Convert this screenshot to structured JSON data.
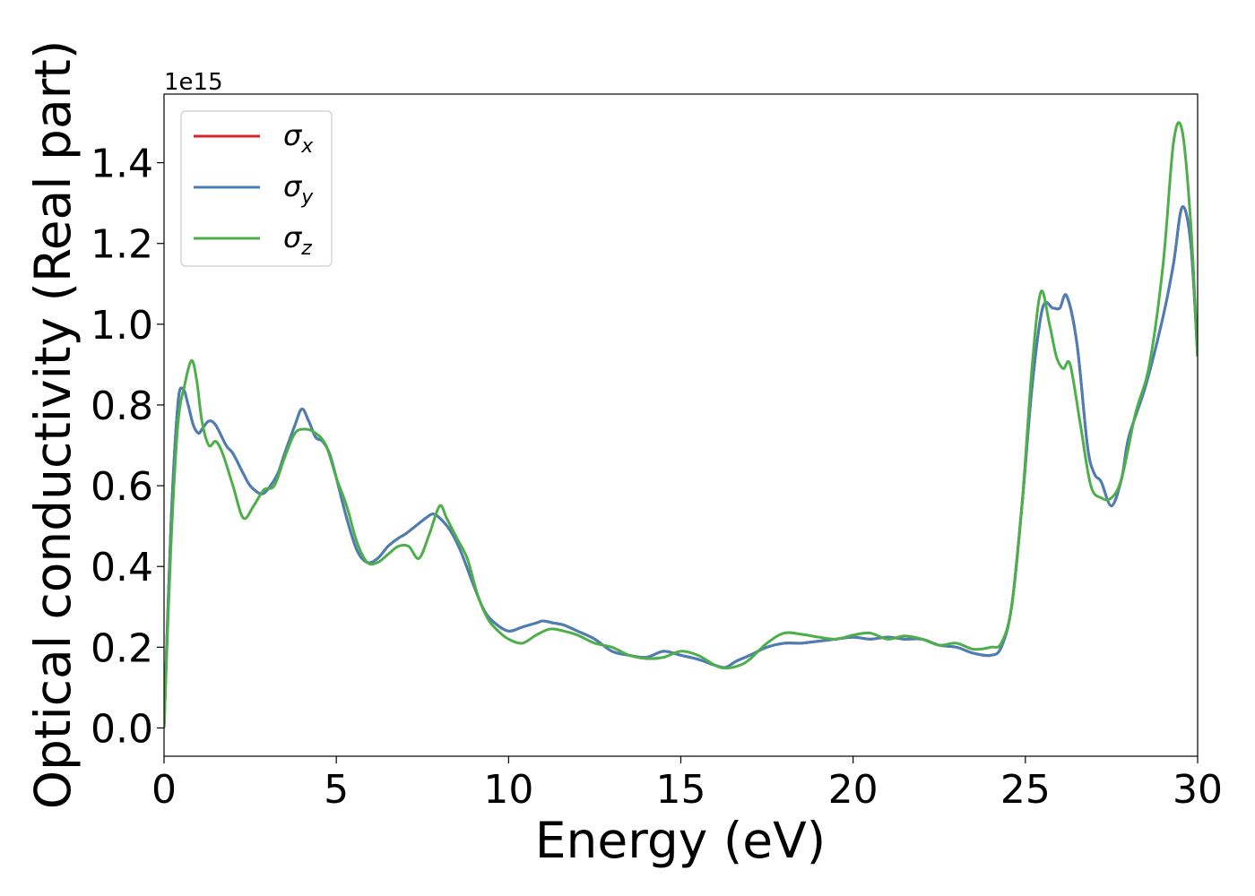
{
  "chart_data": {
    "type": "line",
    "xlabel": "Energy (eV)",
    "ylabel": "Optical conductivity (Real part)",
    "y_offset_label": "1e15",
    "xlim": [
      0,
      30
    ],
    "ylim": [
      -0.07,
      1.57
    ],
    "x_ticks": [
      0,
      5,
      10,
      15,
      20,
      25,
      30
    ],
    "x_tick_labels": [
      "0",
      "5",
      "10",
      "15",
      "20",
      "25",
      "30"
    ],
    "y_ticks": [
      0.0,
      0.2,
      0.4,
      0.6,
      0.8,
      1.0,
      1.2,
      1.4
    ],
    "y_tick_labels": [
      "0.0",
      "0.2",
      "0.4",
      "0.6",
      "0.8",
      "1.0",
      "1.2",
      "1.4"
    ],
    "grid": false,
    "legend_position": "top-left",
    "series": [
      {
        "name": "σ_x",
        "legend_base": "σ",
        "legend_sub": "x",
        "color": "#d62728",
        "x": [
          0,
          0.2,
          0.4,
          0.55,
          0.7,
          0.85,
          1.0,
          1.1,
          1.3,
          1.5,
          1.8,
          2.0,
          2.3,
          2.5,
          2.8,
          3.0,
          3.3,
          3.5,
          3.8,
          4.0,
          4.2,
          4.4,
          4.6,
          4.8,
          5.0,
          5.3,
          5.6,
          5.9,
          6.2,
          6.5,
          6.8,
          7.0,
          7.3,
          7.6,
          7.8,
          8.0,
          8.3,
          8.6,
          9.0,
          9.3,
          9.6,
          10.0,
          10.4,
          10.8,
          11.0,
          11.3,
          11.6,
          12.0,
          12.5,
          13.0,
          13.5,
          14.0,
          14.5,
          15.0,
          15.5,
          16.0,
          16.3,
          16.6,
          17.0,
          17.5,
          18.0,
          18.5,
          19.0,
          19.5,
          20.0,
          20.5,
          21.0,
          21.5,
          22.0,
          22.5,
          23.0,
          23.5,
          24.0,
          24.3,
          24.6,
          24.9,
          25.2,
          25.5,
          25.8,
          26.0,
          26.2,
          26.5,
          26.8,
          27.0,
          27.2,
          27.5,
          27.8,
          28.0,
          28.5,
          29.0,
          29.3,
          29.55,
          29.8,
          30.0
        ],
        "values": [
          0.0,
          0.5,
          0.8,
          0.84,
          0.8,
          0.75,
          0.73,
          0.74,
          0.76,
          0.75,
          0.7,
          0.68,
          0.63,
          0.6,
          0.58,
          0.59,
          0.63,
          0.68,
          0.75,
          0.79,
          0.76,
          0.72,
          0.71,
          0.68,
          0.62,
          0.52,
          0.44,
          0.41,
          0.42,
          0.45,
          0.47,
          0.48,
          0.5,
          0.52,
          0.53,
          0.52,
          0.49,
          0.44,
          0.35,
          0.29,
          0.26,
          0.24,
          0.25,
          0.26,
          0.265,
          0.26,
          0.255,
          0.24,
          0.22,
          0.19,
          0.18,
          0.175,
          0.19,
          0.18,
          0.17,
          0.155,
          0.15,
          0.165,
          0.18,
          0.2,
          0.21,
          0.21,
          0.215,
          0.22,
          0.225,
          0.22,
          0.225,
          0.22,
          0.22,
          0.205,
          0.2,
          0.185,
          0.18,
          0.2,
          0.3,
          0.55,
          0.85,
          1.04,
          1.04,
          1.04,
          1.07,
          0.95,
          0.7,
          0.63,
          0.61,
          0.55,
          0.62,
          0.72,
          0.85,
          1.02,
          1.15,
          1.29,
          1.2,
          0.92
        ]
      },
      {
        "name": "σ_y",
        "legend_base": "σ",
        "legend_sub": "y",
        "color": "#4a7fb5",
        "x": [
          0,
          0.2,
          0.4,
          0.55,
          0.7,
          0.85,
          1.0,
          1.1,
          1.3,
          1.5,
          1.8,
          2.0,
          2.3,
          2.5,
          2.8,
          3.0,
          3.3,
          3.5,
          3.8,
          4.0,
          4.2,
          4.4,
          4.6,
          4.8,
          5.0,
          5.3,
          5.6,
          5.9,
          6.2,
          6.5,
          6.8,
          7.0,
          7.3,
          7.6,
          7.8,
          8.0,
          8.3,
          8.6,
          9.0,
          9.3,
          9.6,
          10.0,
          10.4,
          10.8,
          11.0,
          11.3,
          11.6,
          12.0,
          12.5,
          13.0,
          13.5,
          14.0,
          14.5,
          15.0,
          15.5,
          16.0,
          16.3,
          16.6,
          17.0,
          17.5,
          18.0,
          18.5,
          19.0,
          19.5,
          20.0,
          20.5,
          21.0,
          21.5,
          22.0,
          22.5,
          23.0,
          23.5,
          24.0,
          24.3,
          24.6,
          24.9,
          25.2,
          25.5,
          25.8,
          26.0,
          26.2,
          26.5,
          26.8,
          27.0,
          27.2,
          27.5,
          27.8,
          28.0,
          28.5,
          29.0,
          29.3,
          29.55,
          29.8,
          30.0
        ],
        "values": [
          0.0,
          0.5,
          0.8,
          0.84,
          0.8,
          0.75,
          0.73,
          0.74,
          0.76,
          0.75,
          0.7,
          0.68,
          0.63,
          0.6,
          0.58,
          0.59,
          0.63,
          0.68,
          0.75,
          0.79,
          0.76,
          0.72,
          0.71,
          0.68,
          0.62,
          0.52,
          0.44,
          0.41,
          0.42,
          0.45,
          0.47,
          0.48,
          0.5,
          0.52,
          0.53,
          0.52,
          0.49,
          0.44,
          0.35,
          0.29,
          0.26,
          0.24,
          0.25,
          0.26,
          0.265,
          0.26,
          0.255,
          0.24,
          0.22,
          0.19,
          0.18,
          0.175,
          0.19,
          0.18,
          0.17,
          0.155,
          0.15,
          0.165,
          0.18,
          0.2,
          0.21,
          0.21,
          0.215,
          0.22,
          0.225,
          0.22,
          0.225,
          0.22,
          0.22,
          0.205,
          0.2,
          0.185,
          0.18,
          0.2,
          0.3,
          0.55,
          0.85,
          1.04,
          1.04,
          1.04,
          1.07,
          0.95,
          0.7,
          0.63,
          0.61,
          0.55,
          0.62,
          0.72,
          0.85,
          1.02,
          1.15,
          1.29,
          1.2,
          0.92
        ]
      },
      {
        "name": "σ_z",
        "legend_base": "σ",
        "legend_sub": "z",
        "color": "#4daf4a",
        "x": [
          0,
          0.2,
          0.4,
          0.6,
          0.8,
          0.95,
          1.1,
          1.3,
          1.5,
          1.7,
          2.0,
          2.3,
          2.6,
          2.9,
          3.2,
          3.5,
          3.8,
          4.1,
          4.4,
          4.7,
          5.0,
          5.3,
          5.6,
          5.9,
          6.2,
          6.5,
          6.8,
          7.1,
          7.4,
          7.7,
          8.0,
          8.2,
          8.5,
          8.8,
          9.1,
          9.4,
          9.7,
          10.0,
          10.4,
          10.8,
          11.2,
          11.6,
          12.0,
          12.5,
          13.0,
          13.5,
          14.0,
          14.5,
          15.0,
          15.5,
          16.0,
          16.3,
          16.7,
          17.0,
          17.5,
          18.0,
          18.5,
          19.0,
          19.5,
          20.0,
          20.5,
          21.0,
          21.5,
          22.0,
          22.5,
          23.0,
          23.5,
          24.0,
          24.3,
          24.6,
          24.9,
          25.2,
          25.45,
          25.7,
          25.9,
          26.1,
          26.3,
          26.6,
          26.9,
          27.2,
          27.5,
          27.8,
          28.2,
          28.6,
          29.0,
          29.3,
          29.55,
          29.8,
          30.0
        ],
        "values": [
          0.0,
          0.45,
          0.75,
          0.85,
          0.91,
          0.86,
          0.76,
          0.7,
          0.71,
          0.68,
          0.6,
          0.52,
          0.55,
          0.59,
          0.6,
          0.67,
          0.73,
          0.74,
          0.73,
          0.7,
          0.62,
          0.55,
          0.46,
          0.41,
          0.41,
          0.43,
          0.45,
          0.45,
          0.42,
          0.48,
          0.55,
          0.52,
          0.47,
          0.42,
          0.33,
          0.27,
          0.24,
          0.22,
          0.21,
          0.23,
          0.245,
          0.24,
          0.23,
          0.21,
          0.2,
          0.18,
          0.172,
          0.175,
          0.19,
          0.18,
          0.155,
          0.148,
          0.155,
          0.17,
          0.21,
          0.235,
          0.232,
          0.225,
          0.22,
          0.23,
          0.235,
          0.22,
          0.228,
          0.22,
          0.205,
          0.21,
          0.195,
          0.2,
          0.21,
          0.3,
          0.55,
          0.9,
          1.08,
          1.0,
          0.92,
          0.89,
          0.9,
          0.75,
          0.6,
          0.57,
          0.57,
          0.62,
          0.78,
          0.9,
          1.15,
          1.45,
          1.48,
          1.25,
          0.92
        ]
      }
    ]
  }
}
